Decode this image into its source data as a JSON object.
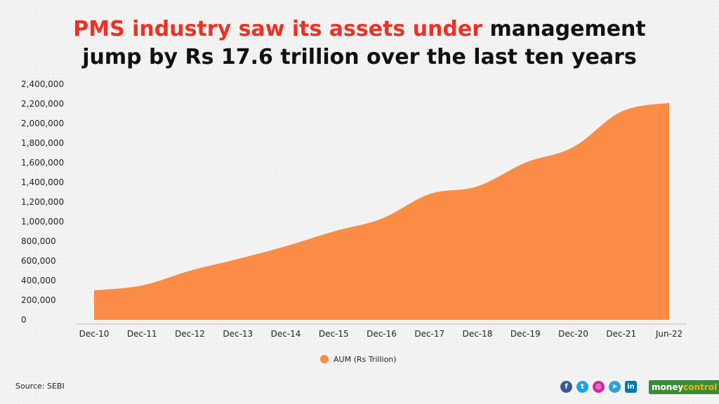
{
  "title": {
    "highlight": "PMS industry saw its assets under",
    "rest_line1": " management",
    "line2": "jump by Rs 17.6 trillion over the last ten years"
  },
  "source": "Source: SEBI",
  "brand": {
    "part1": "money",
    "part2": "control"
  },
  "social_icons": [
    "facebook-icon",
    "twitter-icon",
    "instagram-icon",
    "telegram-icon",
    "linkedin-icon"
  ],
  "colors": {
    "area": "#fb8c46",
    "highlight": "#ee3124",
    "brand": "#3d8b37"
  },
  "chart_data": {
    "type": "area",
    "categories": [
      "Dec-10",
      "Dec-11",
      "Dec-12",
      "Dec-13",
      "Dec-14",
      "Dec-15",
      "Dec-16",
      "Dec-17",
      "Dec-18",
      "Dec-19",
      "Dec-20",
      "Dec-21",
      "Jun-22"
    ],
    "series": [
      {
        "name": "AUM (Rs Trillion)",
        "values": [
          300000,
          350000,
          500000,
          620000,
          750000,
          900000,
          1030000,
          1280000,
          1360000,
          1600000,
          1760000,
          2120000,
          2210000
        ]
      }
    ],
    "y_ticks": [
      "0",
      "200,000",
      "400,000",
      "600,000",
      "800,000",
      "1,000,000",
      "1,200,000",
      "1,400,000",
      "1,600,000",
      "1,800,000",
      "2,000,000",
      "2,200,000",
      "2,400,000"
    ],
    "ylim": [
      0,
      2400000
    ],
    "grid": false,
    "legend": "bottom-center"
  }
}
